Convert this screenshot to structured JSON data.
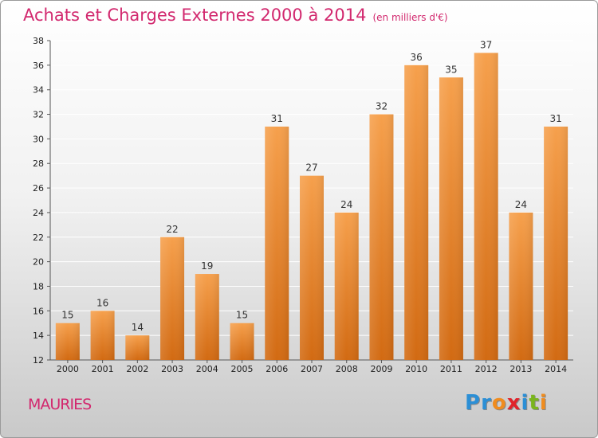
{
  "title": "Achats et Charges Externes 2000 à 2014",
  "unit_note": "(en milliers d'€)",
  "commune": "MAURIES",
  "logo": {
    "text": "Proxiti",
    "letters": [
      "P",
      "r",
      "o",
      "x",
      "i",
      "t",
      "i"
    ],
    "colors": [
      "#2b8fd6",
      "#2b8fd6",
      "#f08c1e",
      "#e0242b",
      "#2b8fd6",
      "#7ab51d",
      "#f08c1e"
    ]
  },
  "chart_data": {
    "type": "bar",
    "title": "Achats et Charges Externes 2000 à 2014",
    "subtitle": "(en milliers d'€)",
    "categories": [
      "2000",
      "2001",
      "2002",
      "2003",
      "2004",
      "2005",
      "2006",
      "2007",
      "2008",
      "2009",
      "2010",
      "2011",
      "2012",
      "2013",
      "2014"
    ],
    "values": [
      15,
      16,
      14,
      22,
      19,
      15,
      31,
      27,
      24,
      32,
      36,
      35,
      37,
      24,
      31
    ],
    "ylim": [
      12,
      38
    ],
    "yticks": [
      12,
      14,
      16,
      18,
      20,
      22,
      24,
      26,
      28,
      30,
      32,
      34,
      36,
      38
    ],
    "grid": true,
    "bar_color": "#f0903a",
    "xlabel": "",
    "ylabel": ""
  }
}
